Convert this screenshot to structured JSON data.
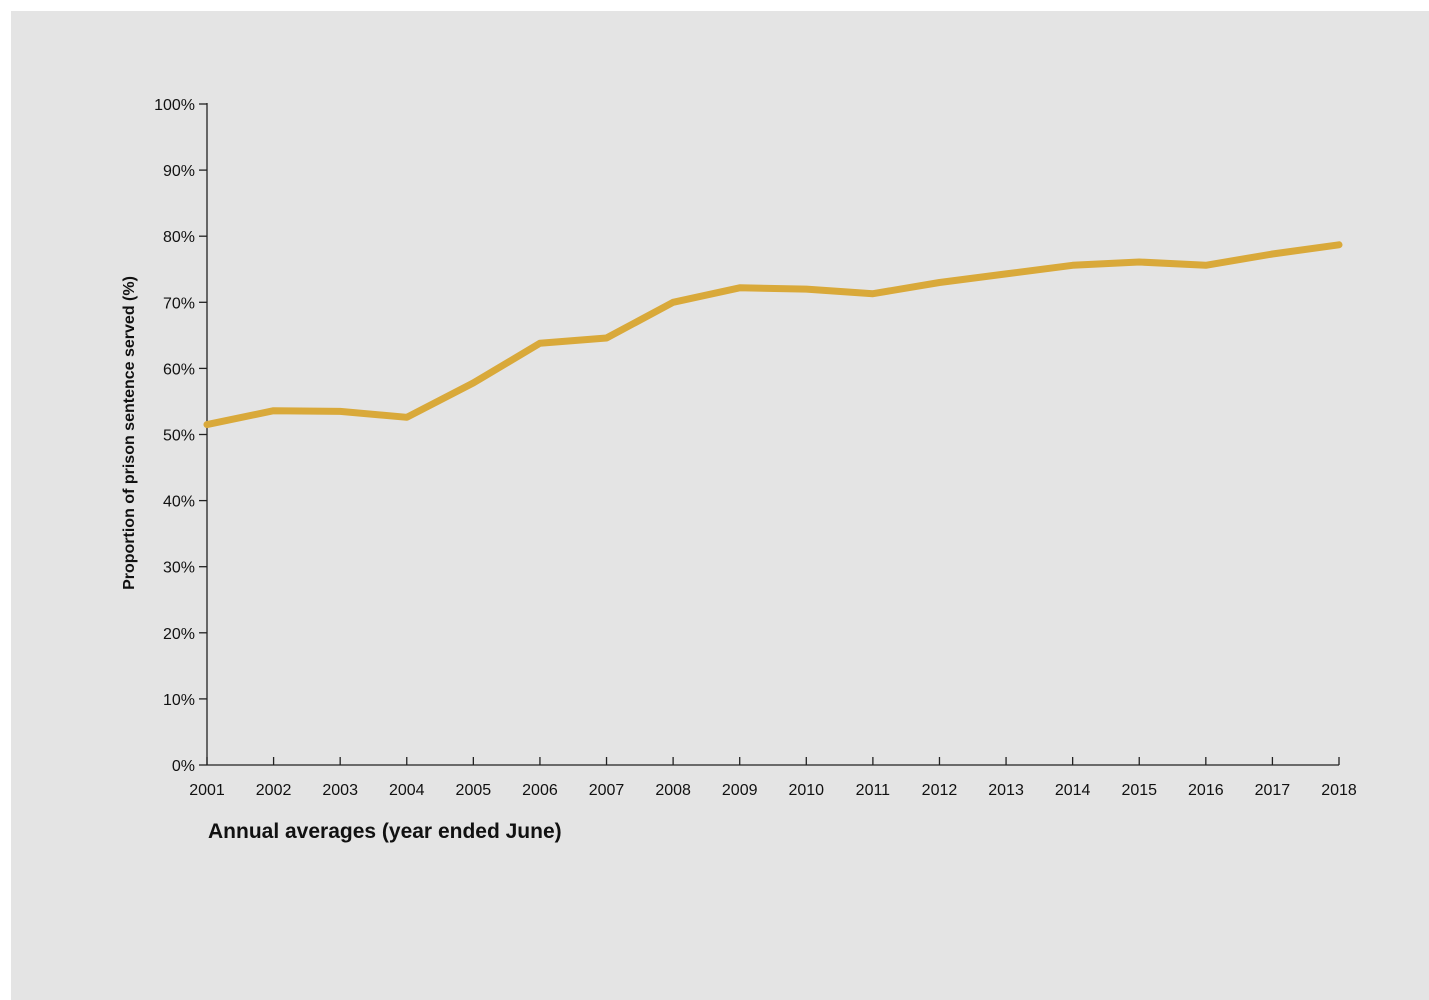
{
  "chart_data": {
    "type": "line",
    "title": "",
    "xlabel": "Annual averages (year ended June)",
    "ylabel": "Proportion of prison sentence served (%)",
    "x": [
      "2001",
      "2002",
      "2003",
      "2004",
      "2005",
      "2006",
      "2007",
      "2008",
      "2009",
      "2010",
      "2011",
      "2012",
      "2013",
      "2014",
      "2015",
      "2016",
      "2017",
      "2018"
    ],
    "y_ticks": [
      "0%",
      "10%",
      "20%",
      "30%",
      "40%",
      "50%",
      "60%",
      "70%",
      "80%",
      "90%",
      "100%"
    ],
    "ylim": [
      0,
      100
    ],
    "grid": false,
    "legend": "none",
    "series": [
      {
        "color": "#d9a93a",
        "values": [
          51.5,
          53.6,
          53.5,
          52.6,
          57.8,
          63.8,
          64.6,
          70.0,
          72.2,
          72.0,
          71.3,
          73.0,
          74.3,
          75.6,
          76.1,
          75.6,
          77.3,
          78.7
        ]
      }
    ]
  }
}
